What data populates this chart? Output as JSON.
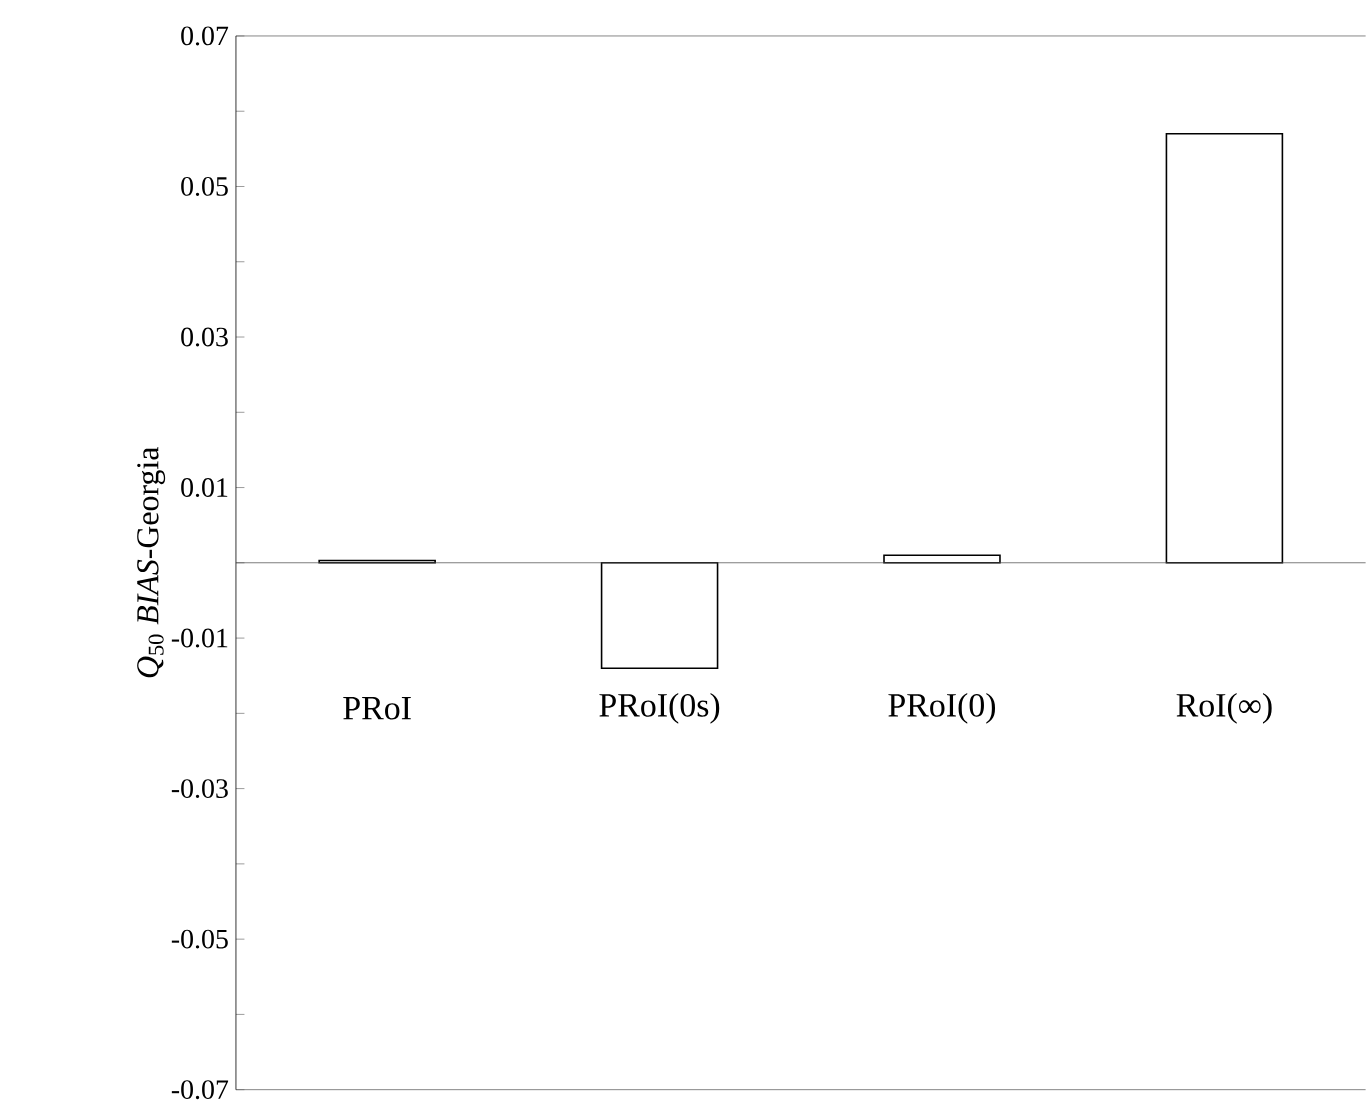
{
  "chart_data": {
    "type": "bar",
    "ylabel": "*Q*$_{50}$ *BIAS*-Georgia",
    "categories": [
      "PRoI",
      "PRoI(0s)",
      "PRoI(0)",
      "RoI(∞)"
    ],
    "values": [
      0.0003,
      -0.014,
      0.001,
      0.057
    ],
    "color": "#ffffff",
    "ylim": [
      -0.07,
      0.07
    ],
    "yticks": [
      -0.07,
      {
        "value": -0.06,
        "label": null
      },
      -0.05,
      {
        "value": -0.04,
        "label": null
      },
      -0.03,
      {
        "value": -0.02,
        "label": null
      },
      -0.01,
      {
        "value": 0.0,
        "label": null
      },
      0.01,
      {
        "value": 0.02,
        "label": null
      },
      0.03,
      {
        "value": 0.04,
        "label": null
      },
      0.05,
      {
        "value": 0.06,
        "label": null
      },
      0.07
    ]
  }
}
